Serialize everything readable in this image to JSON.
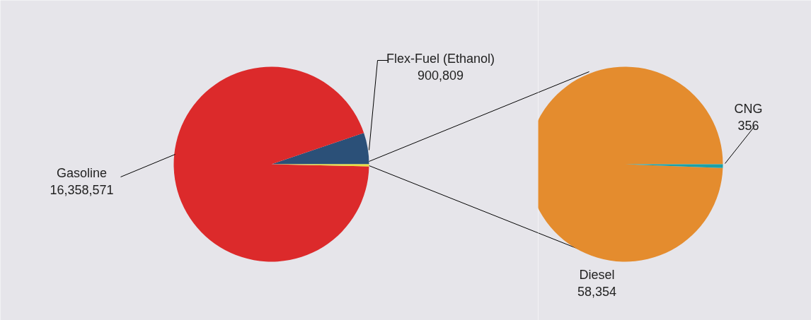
{
  "chart_data": [
    {
      "type": "pie",
      "categories": [
        "Flex-Fuel (Ethanol)",
        "Gasoline",
        null
      ],
      "values": [
        900809,
        16358571,
        58710
      ],
      "colors": [
        "#2b5078",
        "#dc2a2b",
        "#e8e040"
      ],
      "value_labels": [
        "900,809",
        "16,358,571",
        null
      ]
    },
    {
      "type": "pie",
      "categories": [
        "Diesel",
        "CNG"
      ],
      "values": [
        58354,
        356
      ],
      "colors": [
        "#e48c2e",
        "#1aa1a8"
      ],
      "value_labels": [
        "58,354",
        "356"
      ]
    }
  ]
}
